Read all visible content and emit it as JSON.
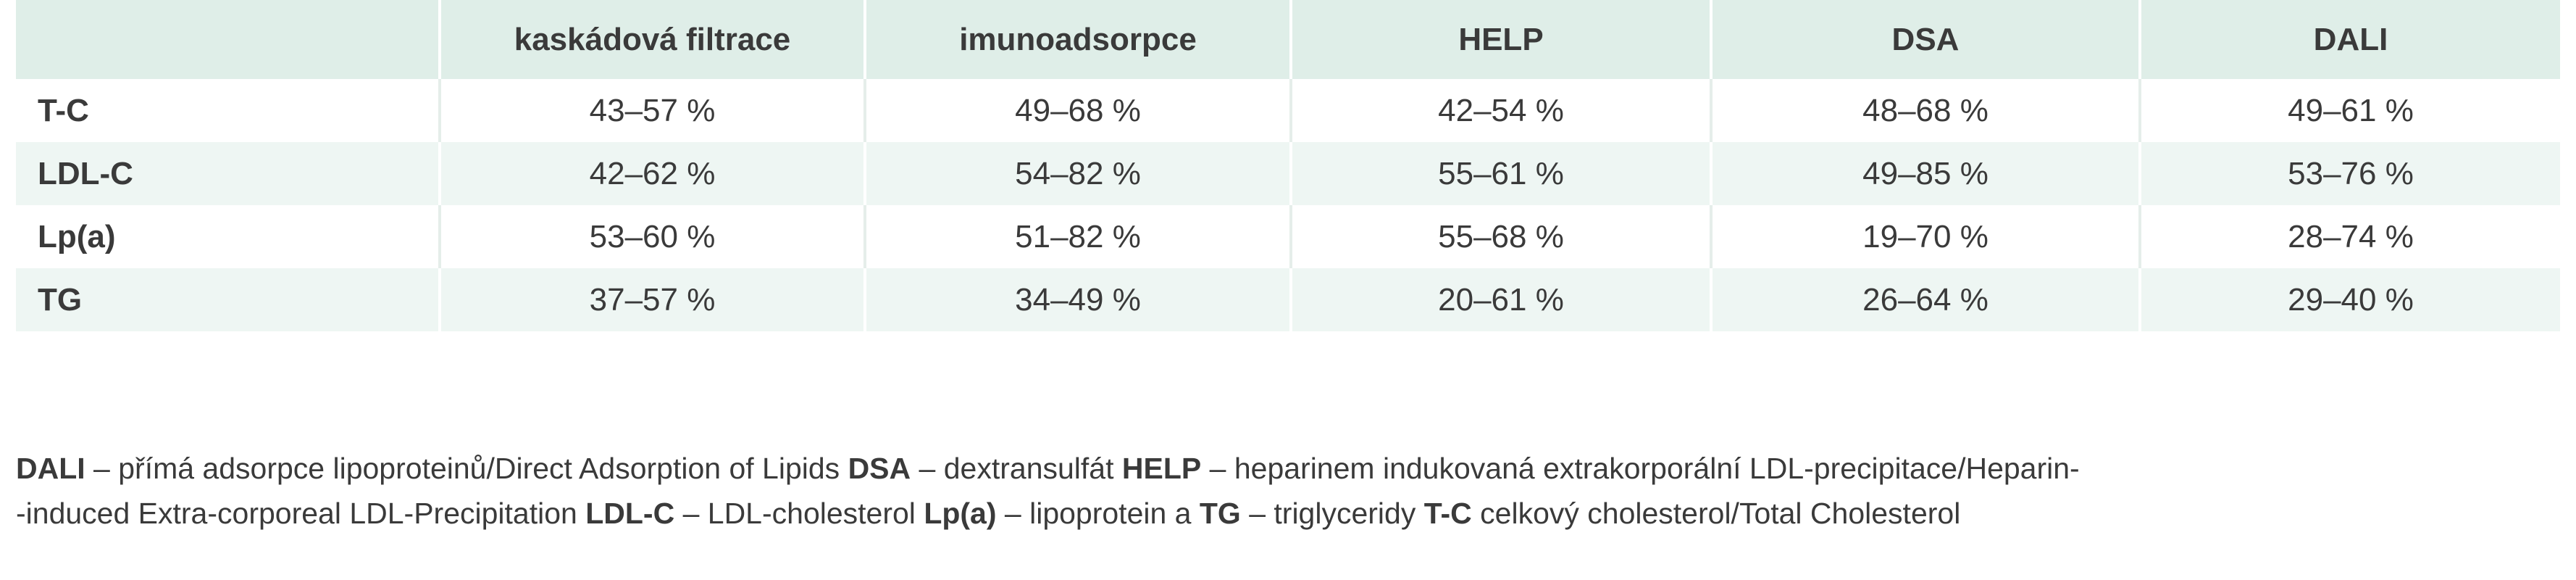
{
  "table": {
    "columns": [
      "",
      "kaskádová filtrace",
      "imunoadsorpce",
      "HELP",
      "DSA",
      "DALI"
    ],
    "rows": [
      {
        "label": "T-C",
        "values": [
          "43–57 %",
          "49–68 %",
          "42–54 %",
          "48–68 %",
          "49–61 %"
        ]
      },
      {
        "label": "LDL-C",
        "values": [
          "42–62 %",
          "54–82 %",
          "55–61 %",
          "49–85 %",
          "53–76 %"
        ]
      },
      {
        "label": "Lp(a)",
        "values": [
          "53–60 %",
          "51–82 %",
          "55–68 %",
          "19–70 %",
          "28–74 %"
        ]
      },
      {
        "label": "TG",
        "values": [
          "37–57 %",
          "34–49 %",
          "20–61 %",
          "26–64 %",
          "29–40 %"
        ]
      }
    ]
  },
  "legend": {
    "line1": [
      {
        "term": "DALI",
        "desc": " – přímá adsorpce lipoproteinů/Direct Adsorption of Lipids "
      },
      {
        "term": "DSA",
        "desc": " – dextransulfát "
      },
      {
        "term": "HELP",
        "desc": " – heparinem indukovaná extrakorporální LDL-precipitace/Heparin-"
      }
    ],
    "line2": [
      {
        "term": "",
        "desc": "-induced Extra-corporeal LDL-Precipitation "
      },
      {
        "term": "LDL-C",
        "desc": " – LDL-cholesterol "
      },
      {
        "term": "Lp(a)",
        "desc": " – lipoprotein a "
      },
      {
        "term": "TG",
        "desc": " – triglyceridy "
      },
      {
        "term": "T-C",
        "desc": " celkový cholesterol/Total Cholesterol"
      }
    ]
  },
  "colors": {
    "header_bg": "#dfeee8",
    "alt_row_bg": "#eef6f3",
    "text": "#3a3a3a"
  }
}
